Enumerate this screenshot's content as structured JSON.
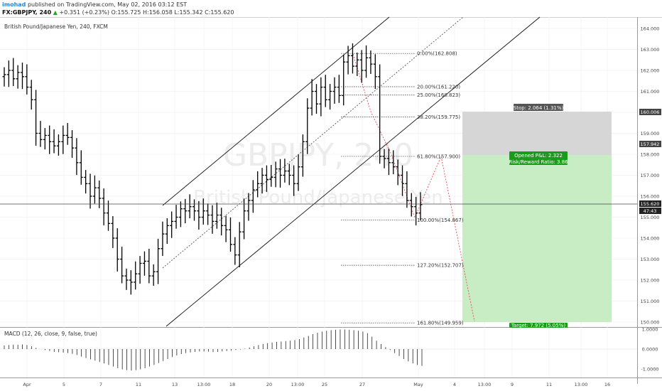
{
  "header": {
    "author": "imohad",
    "published_text": "published on TradingView.com, May 02, 2016 03:12 EST",
    "symbol_line": "FX:GBPJPY, 240",
    "change_text": "+0.351 (+0.23%)",
    "ohlc": "O:155.725 H:156.058 L:155.342 C:155.620"
  },
  "colors": {
    "up": "#22a822",
    "candle": "#000000",
    "stop_zone": "#d6d6d6",
    "target_zone": "#c8ecc4",
    "pnl_box": "#1a9b1a",
    "price_label": "#222222"
  },
  "chart_data": [
    {
      "type": "ohlc",
      "title": "British Pound/Japanese Yen, 240, FXCM",
      "watermark": "GBPJPY, 240",
      "watermark_sub": "British Pound/Japanese Yen",
      "y_ticks": [
        150,
        151,
        152,
        153,
        154,
        155,
        156,
        157,
        158,
        159,
        160,
        161,
        162,
        163,
        164
      ],
      "y_tick_labels": [
        "150.000",
        "151.000",
        "152.000",
        "153.000",
        "154.000",
        "155.000",
        "156.000",
        "157.000",
        "158.000",
        "159.000",
        "160.000",
        "161.000",
        "162.000",
        "163.000",
        "164.000"
      ],
      "ylim": [
        149.9,
        164.2
      ],
      "x_tick_labels": [
        "Apr",
        "5",
        "7",
        "11",
        "13",
        "13:00",
        "18",
        "20",
        "13:00",
        "25",
        "27",
        "May",
        "4",
        "13:00",
        "9",
        "11",
        "13:00",
        "16"
      ],
      "current_price": "155.620",
      "countdown": "47:43",
      "fibonacci": [
        {
          "level": "0.00%",
          "price": 162.808,
          "label": "0.00%(162.808)"
        },
        {
          "level": "20.00%",
          "price": 161.22,
          "label": "20.00%(161.220)"
        },
        {
          "level": "25.00%",
          "price": 160.823,
          "label": "25.00%(160.823)"
        },
        {
          "level": "38.20%",
          "price": 159.775,
          "label": "38.20%(159.775)"
        },
        {
          "level": "61.80%",
          "price": 157.9,
          "label": "61.80%(157.900)"
        },
        {
          "level": "100.00%",
          "price": 154.867,
          "label": "100.00%(154.867)"
        },
        {
          "level": "127.20%",
          "price": 152.707,
          "label": "127.20%(152.707)"
        },
        {
          "level": "161.80%",
          "price": 149.959,
          "label": "161.80%(149.959)"
        }
      ],
      "position": {
        "stop_label": "Stop: 2.064 (1.31%)",
        "stop_price": "160.006",
        "entry_price": "157.942",
        "pnl_label": "Opened P&L: 2.322",
        "rr_label": "Risk/Reward Ratio: 3.86",
        "target_label": "Target: 7.972 (5.05%)",
        "stop": 160.006,
        "entry": 157.942,
        "target": 149.97
      },
      "series": [
        {
          "values": [
            161.8,
            162.0,
            161.6,
            161.9,
            161.7,
            161.2,
            160.6,
            159.0,
            158.7,
            158.9,
            158.6,
            158.4,
            158.6,
            158.9,
            158.8,
            158.3,
            157.6,
            156.9,
            156.6,
            156.0,
            156.4,
            155.9,
            155.2,
            154.7,
            154.0,
            153.0,
            152.2,
            152.0,
            151.9,
            152.3,
            152.8,
            152.9,
            152.2,
            152.4,
            153.5,
            154.2,
            154.6,
            154.8,
            155.0,
            155.4,
            155.3,
            155.5,
            155.3,
            155.0,
            155.3,
            155.1,
            154.8,
            155.1,
            154.6,
            154.4,
            153.7,
            153.2,
            154.3,
            155.3,
            155.8,
            156.3,
            156.6,
            157.0,
            156.8,
            156.9,
            157.3,
            157.0,
            157.2,
            157.0,
            156.6,
            157.4,
            158.6,
            160.2,
            161.0,
            160.4,
            161.2,
            160.6,
            161.0,
            161.2,
            160.8,
            162.4,
            162.7,
            162.2,
            162.5,
            162.0,
            162.6,
            162.3,
            161.7,
            157.9,
            157.8,
            157.6,
            157.4,
            157.0,
            156.6,
            155.8,
            155.5,
            155.2,
            155.6
          ]
        }
      ]
    },
    {
      "type": "bar",
      "title": "MACD (12, 26, close, 9, false, true)",
      "y_ticks": [
        1,
        0,
        -1
      ],
      "y_tick_labels": [
        "1.0000",
        "0.0000",
        "-1.0000"
      ],
      "ylim": [
        -1.45,
        1.2
      ],
      "values": [
        0.18,
        0.2,
        0.22,
        0.22,
        0.23,
        0.2,
        0.14,
        0.06,
        0.0,
        -0.05,
        -0.1,
        -0.14,
        -0.16,
        -0.18,
        -0.2,
        -0.24,
        -0.3,
        -0.38,
        -0.45,
        -0.52,
        -0.58,
        -0.65,
        -0.72,
        -0.8,
        -0.88,
        -0.96,
        -1.02,
        -1.06,
        -1.08,
        -1.06,
        -1.02,
        -0.96,
        -0.88,
        -0.8,
        -0.7,
        -0.6,
        -0.5,
        -0.4,
        -0.32,
        -0.25,
        -0.2,
        -0.17,
        -0.14,
        -0.12,
        -0.12,
        -0.13,
        -0.15,
        -0.14,
        -0.12,
        -0.1,
        -0.08,
        -0.05,
        -0.02,
        0.02,
        0.08,
        0.14,
        0.2,
        0.25,
        0.3,
        0.33,
        0.36,
        0.38,
        0.4,
        0.42,
        0.45,
        0.5,
        0.58,
        0.66,
        0.75,
        0.82,
        0.88,
        0.92,
        0.95,
        0.97,
        0.98,
        0.98,
        0.97,
        0.95,
        0.92,
        0.88,
        0.8,
        0.62,
        0.42,
        0.25,
        0.1,
        -0.05,
        -0.2,
        -0.35,
        -0.5,
        -0.62,
        -0.72,
        -0.8,
        -0.85
      ]
    }
  ]
}
